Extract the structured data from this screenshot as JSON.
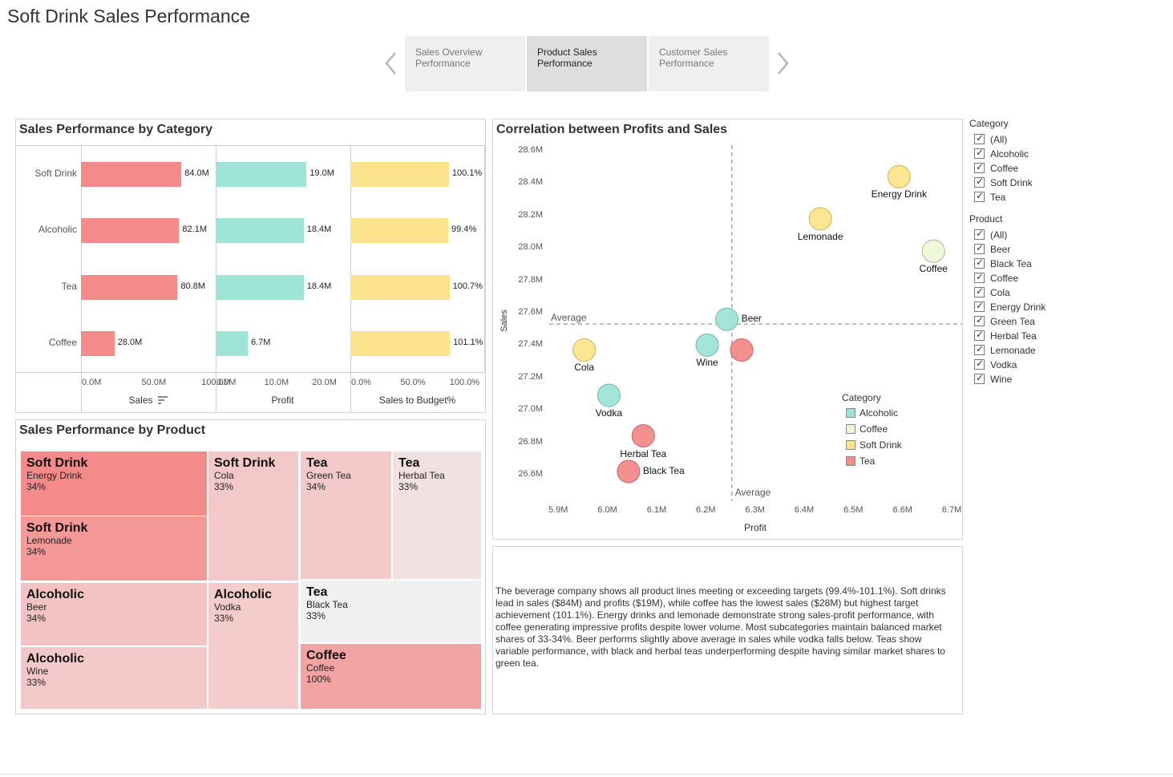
{
  "page": {
    "title": "Soft Drink Sales Performance"
  },
  "story_tabs": [
    {
      "label": "Sales Overview Performance",
      "active": false
    },
    {
      "label": "Product Sales Performance",
      "active": true
    },
    {
      "label": "Customer Sales Performance",
      "active": false
    }
  ],
  "icons": {
    "prev": "chevron-left-icon",
    "next": "chevron-right-icon",
    "sort": "sort-descending-icon",
    "check": "checkmark-icon"
  },
  "colors": {
    "alcoholic": "#9ee5d7",
    "coffee": "#eef8d8",
    "soft_drink": "#fde48c",
    "tea": "#f48a8a",
    "sales_bar": "#f48a8a",
    "profit_bar": "#9ee5d7",
    "budget_bar": "#fde48c"
  },
  "bar_panel": {
    "title": "Sales Performance by Category",
    "sort_icon": "sort-descending-icon"
  },
  "treemap": {
    "title": "Sales Performance by Product",
    "cells": [
      {
        "category": "Soft Drink",
        "product": "Energy Drink",
        "pct": "34%",
        "color": "#f48a8a"
      },
      {
        "category": "Soft Drink",
        "product": "Lemonade",
        "pct": "34%",
        "color": "#f49898"
      },
      {
        "category": "Soft Drink",
        "product": "Cola",
        "pct": "33%",
        "color": "#f3c8c8"
      },
      {
        "category": "Tea",
        "product": "Green Tea",
        "pct": "34%",
        "color": "#f3c9c9"
      },
      {
        "category": "Tea",
        "product": "Herbal Tea",
        "pct": "33%",
        "color": "#f1e1e1"
      },
      {
        "category": "Alcoholic",
        "product": "Beer",
        "pct": "34%",
        "color": "#f3c3c3"
      },
      {
        "category": "Alcoholic",
        "product": "Vodka",
        "pct": "33%",
        "color": "#f4cccc"
      },
      {
        "category": "Tea",
        "product": "Black Tea",
        "pct": "33%",
        "color": "#f0f0f0"
      },
      {
        "category": "Alcoholic",
        "product": "Wine",
        "pct": "33%",
        "color": "#f3c8c8"
      },
      {
        "category": "Coffee",
        "product": "Coffee",
        "pct": "100%",
        "color": "#f4a3a3"
      }
    ]
  },
  "scatter_panel": {
    "title": "Correlation between Profits and Sales"
  },
  "note": {
    "text": "The beverage company shows all product lines meeting or exceeding targets (99.4%-101.1%). Soft drinks lead in sales ($84M) and profits ($19M), while coffee has the lowest sales ($28M) but highest target achievement (101.1%). Energy drinks and lemonade demonstrate strong sales-profit performance, with coffee generating impressive profits despite lower volume. Most subcategories maintain balanced market shares of 33-34%. Beer performs slightly above average in sales while vodka falls below. Teas show variable performance, with black and herbal teas underperforming despite having similar market shares to green tea."
  },
  "filters": {
    "category": {
      "title": "Category",
      "items": [
        "(All)",
        "Alcoholic",
        "Coffee",
        "Soft Drink",
        "Tea"
      ]
    },
    "product": {
      "title": "Product",
      "items": [
        "(All)",
        "Beer",
        "Black Tea",
        "Coffee",
        "Cola",
        "Energy Drink",
        "Green Tea",
        "Herbal Tea",
        "Lemonade",
        "Vodka",
        "Wine"
      ]
    }
  },
  "chart_data": [
    {
      "type": "bar",
      "orientation": "horizontal",
      "title": "Sales Performance by Category",
      "categories": [
        "Soft Drink",
        "Alcoholic",
        "Tea",
        "Coffee"
      ],
      "panes": [
        {
          "name": "Sales",
          "xlabel": "Sales",
          "values": [
            84.0,
            82.1,
            80.8,
            28.0
          ],
          "labels": [
            "84.0M",
            "82.1M",
            "80.8M",
            "28.0M"
          ],
          "ticks": [
            "0.0M",
            "50.0M",
            "100.0M"
          ],
          "xlim": [
            0,
            112
          ],
          "color": "#f48a8a"
        },
        {
          "name": "Profit",
          "xlabel": "Profit",
          "values": [
            19.0,
            18.4,
            18.4,
            6.7
          ],
          "labels": [
            "19.0M",
            "18.4M",
            "18.4M",
            "6.7M"
          ],
          "ticks": [
            "0.0M",
            "10.0M",
            "20.0M"
          ],
          "xlim": [
            0,
            28
          ],
          "color": "#9ee5d7"
        },
        {
          "name": "Sales to Budget%",
          "xlabel": "Sales to Budget%",
          "values": [
            100.1,
            99.4,
            100.7,
            101.1
          ],
          "labels": [
            "100.1%",
            "99.4%",
            "100.7%",
            "101.1%"
          ],
          "ticks": [
            "0.0%",
            "50.0%",
            "100.0%"
          ],
          "xlim": [
            0,
            136
          ],
          "color": "#fde48c"
        }
      ]
    },
    {
      "type": "scatter",
      "title": "Correlation between Profits and Sales",
      "xlabel": "Profit",
      "ylabel": "Sales",
      "xlim": [
        5.88,
        6.72
      ],
      "ylim": [
        26.55,
        28.65
      ],
      "xticks": [
        "5.9M",
        "6.0M",
        "6.1M",
        "6.2M",
        "6.3M",
        "6.4M",
        "6.5M",
        "6.6M",
        "6.7M"
      ],
      "xtick_values": [
        5.9,
        6.0,
        6.1,
        6.2,
        6.3,
        6.4,
        6.5,
        6.6,
        6.7
      ],
      "yticks": [
        "26.6M",
        "26.8M",
        "27.0M",
        "27.2M",
        "27.4M",
        "27.6M",
        "27.8M",
        "28.0M",
        "28.2M",
        "28.4M",
        "28.6M"
      ],
      "ytick_values": [
        26.6,
        26.8,
        27.0,
        27.2,
        27.4,
        27.6,
        27.8,
        28.0,
        28.2,
        28.4,
        28.6
      ],
      "reference_lines": {
        "x": 6.25,
        "y": 27.53,
        "x_label": "Average",
        "y_label": "Average"
      },
      "legend": {
        "title": "Category",
        "position": "bottom-right",
        "entries": [
          {
            "name": "Alcoholic",
            "color": "#9ee5d7"
          },
          {
            "name": "Coffee",
            "color": "#eef8d8"
          },
          {
            "name": "Soft Drink",
            "color": "#fde48c"
          },
          {
            "name": "Tea",
            "color": "#f48a8a"
          }
        ]
      },
      "points": [
        {
          "label": "Energy Drink",
          "category": "Soft Drink",
          "x": 6.59,
          "y": 28.44,
          "label_pos": "below"
        },
        {
          "label": "Lemonade",
          "category": "Soft Drink",
          "x": 6.43,
          "y": 28.18,
          "label_pos": "below"
        },
        {
          "label": "Coffee",
          "category": "Coffee",
          "x": 6.66,
          "y": 27.98,
          "label_pos": "below"
        },
        {
          "label": "Beer",
          "category": "Alcoholic",
          "x": 6.24,
          "y": 27.56,
          "label_pos": "right"
        },
        {
          "label": "Wine",
          "category": "Alcoholic",
          "x": 6.2,
          "y": 27.4,
          "label_pos": "below"
        },
        {
          "label": "",
          "category": "Tea",
          "x": 6.27,
          "y": 27.37,
          "label_pos": "none"
        },
        {
          "label": "Cola",
          "category": "Soft Drink",
          "x": 5.95,
          "y": 27.37,
          "label_pos": "below"
        },
        {
          "label": "Vodka",
          "category": "Alcoholic",
          "x": 6.0,
          "y": 27.09,
          "label_pos": "below"
        },
        {
          "label": "Herbal Tea",
          "category": "Tea",
          "x": 6.07,
          "y": 26.84,
          "label_pos": "below"
        },
        {
          "label": "Black Tea",
          "category": "Tea",
          "x": 6.04,
          "y": 26.62,
          "label_pos": "right"
        }
      ]
    }
  ]
}
